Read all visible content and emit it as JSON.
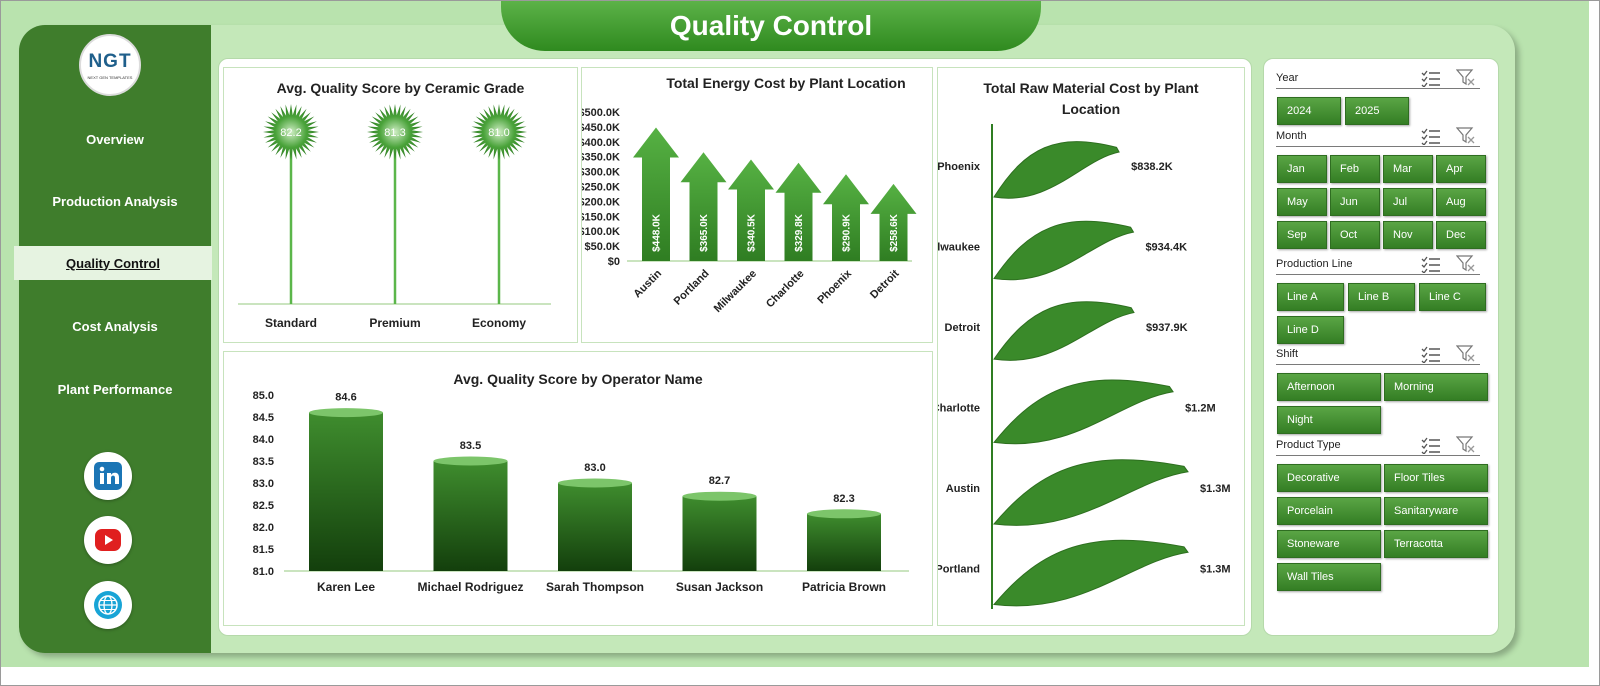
{
  "header": {
    "title": "Quality Control"
  },
  "logo": {
    "text": "NGT",
    "subtext": "NEXT GEN TEMPLATES"
  },
  "sidebar": {
    "items": [
      {
        "label": "Overview",
        "active": false
      },
      {
        "label": "Production Analysis",
        "active": false
      },
      {
        "label": "Quality Control",
        "active": true
      },
      {
        "label": "Cost Analysis",
        "active": false
      },
      {
        "label": "Plant Performance",
        "active": false
      }
    ],
    "social": [
      "linkedin-icon",
      "youtube-icon",
      "globe-icon"
    ]
  },
  "colors": {
    "accent": "#3f7d2c",
    "bright": "#4aa33a",
    "dark": "#1f5a14",
    "background": "#b9e3ae"
  },
  "chart_data": [
    {
      "id": "grade",
      "type": "lollipop",
      "title": "Avg. Quality Score by Ceramic Grade",
      "categories": [
        "Standard",
        "Premium",
        "Economy"
      ],
      "values": [
        82.2,
        81.3,
        81.0
      ],
      "value_labels": [
        "82.2",
        "81.3",
        "81.0"
      ]
    },
    {
      "id": "energy",
      "type": "bar",
      "title": "Total Energy Cost by Plant Location",
      "categories": [
        "Austin",
        "Portland",
        "Milwaukee",
        "Charlotte",
        "Phoenix",
        "Detroit"
      ],
      "values": [
        448.0,
        365.0,
        340.5,
        329.8,
        290.9,
        258.6
      ],
      "value_labels": [
        "$448.0K",
        "$365.0K",
        "$340.5K",
        "$329.8K",
        "$290.9K",
        "$258.6K"
      ],
      "ylim": [
        0,
        500
      ],
      "yticks": [
        "$0",
        "$50.0K",
        "$100.0K",
        "$150.0K",
        "$200.0K",
        "$250.0K",
        "$300.0K",
        "$350.0K",
        "$400.0K",
        "$450.0K",
        "$500.0K"
      ]
    },
    {
      "id": "raw",
      "type": "bar",
      "orientation": "horizontal",
      "title": "Total Raw Material Cost by Plant Location",
      "categories": [
        "Phoenix",
        "Milwaukee",
        "Detroit",
        "Charlotte",
        "Austin",
        "Portland"
      ],
      "values": [
        838.2,
        934.4,
        937.9,
        1200,
        1300,
        1300
      ],
      "value_labels": [
        "$838.2K",
        "$934.4K",
        "$937.9K",
        "$1.2M",
        "$1.3M",
        "$1.3M"
      ]
    },
    {
      "id": "operator",
      "type": "bar",
      "title": "Avg. Quality Score by Operator Name",
      "categories": [
        "Karen Lee",
        "Michael Rodriguez",
        "Sarah Thompson",
        "Susan Jackson",
        "Patricia Brown"
      ],
      "values": [
        84.6,
        83.5,
        83.0,
        82.7,
        82.3
      ],
      "value_labels": [
        "84.6",
        "83.5",
        "83.0",
        "82.7",
        "82.3"
      ],
      "ylim": [
        81.0,
        85.0
      ],
      "yticks": [
        "81.0",
        "81.5",
        "82.0",
        "82.5",
        "83.0",
        "83.5",
        "84.0",
        "84.5",
        "85.0"
      ]
    }
  ],
  "slicers": [
    {
      "title": "Year",
      "items": [
        "2024",
        "2025"
      ]
    },
    {
      "title": "Month",
      "items": [
        "Jan",
        "Feb",
        "Mar",
        "Apr",
        "May",
        "Jun",
        "Jul",
        "Aug",
        "Sep",
        "Oct",
        "Nov",
        "Dec"
      ]
    },
    {
      "title": "Production Line",
      "items": [
        "Line A",
        "Line B",
        "Line C",
        "Line D"
      ]
    },
    {
      "title": "Shift",
      "items": [
        "Afternoon",
        "Morning",
        "Night"
      ]
    },
    {
      "title": "Product Type",
      "items": [
        "Decorative",
        "Floor Tiles",
        "Porcelain",
        "Sanitaryware",
        "Stoneware",
        "Terracotta",
        "Wall Tiles"
      ]
    }
  ]
}
